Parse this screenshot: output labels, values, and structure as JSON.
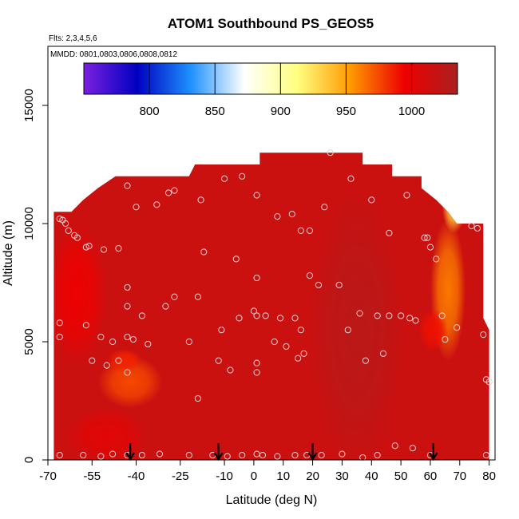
{
  "chart_data": {
    "type": "heatmap",
    "title": "ATOM1 Southbound PS_GEOS5",
    "subtitle_flights": "Flts: 2,3,4,5,6",
    "subtitle_dates": "MMDD: 0801,0803,0806,0808,0812",
    "xlabel": "Latitude (deg N)",
    "ylabel": "Altitude (m)",
    "xlim": [
      -70,
      82
    ],
    "ylim": [
      0,
      17500
    ],
    "x_ticks": [
      -70,
      -55,
      -40,
      -25,
      -10,
      0,
      10,
      20,
      30,
      40,
      50,
      60,
      70,
      80
    ],
    "x_tick_labels": [
      "-70",
      "-55",
      "-40",
      "-25",
      "-10",
      "0",
      "10",
      "20",
      "30",
      "40",
      "50",
      "60",
      "70",
      "80"
    ],
    "y_ticks": [
      0,
      5000,
      10000,
      15000
    ],
    "y_tick_labels": [
      "0",
      "5000",
      "10000",
      "15000"
    ],
    "colorbar": {
      "range": [
        750,
        1035
      ],
      "ticks": [
        800,
        850,
        900,
        950,
        1000
      ],
      "tick_labels": [
        "800",
        "850",
        "900",
        "950",
        "1000"
      ],
      "placement": "top-inside",
      "colors": [
        "#7a1fe0",
        "#0000c0",
        "#1e90ff",
        "#ffffff",
        "#ffff80",
        "#ff9900",
        "#ee0000",
        "#aa2020"
      ]
    },
    "profile_top": [
      {
        "lat": -68,
        "alt": 10500
      },
      {
        "lat": -62,
        "alt": 10500
      },
      {
        "lat": -58,
        "alt": 11000
      },
      {
        "lat": -53,
        "alt": 11500
      },
      {
        "lat": -47,
        "alt": 12000
      },
      {
        "lat": -22,
        "alt": 12000
      },
      {
        "lat": -20,
        "alt": 12500
      },
      {
        "lat": 2,
        "alt": 12500
      },
      {
        "lat": 2,
        "alt": 13000
      },
      {
        "lat": 37,
        "alt": 13000
      },
      {
        "lat": 37,
        "alt": 12500
      },
      {
        "lat": 47,
        "alt": 12500
      },
      {
        "lat": 47,
        "alt": 12000
      },
      {
        "lat": 57,
        "alt": 12000
      },
      {
        "lat": 57,
        "alt": 11500
      },
      {
        "lat": 62,
        "alt": 11000
      },
      {
        "lat": 66,
        "alt": 10500
      },
      {
        "lat": 69,
        "alt": 10000
      },
      {
        "lat": 78,
        "alt": 10000
      },
      {
        "lat": 78,
        "alt": 6000
      },
      {
        "lat": 80,
        "alt": 5500
      },
      {
        "lat": 80,
        "alt": 0
      },
      {
        "lat": -68,
        "alt": 0
      }
    ],
    "field_blobs": [
      {
        "lat": -42,
        "alt": 3300,
        "rlat": 11,
        "ralt": 1100,
        "value": 975
      },
      {
        "lat": -44,
        "alt": 4200,
        "rlat": 6,
        "ralt": 500,
        "value": 985
      },
      {
        "lat": 66,
        "alt": 7200,
        "rlat": 6,
        "ralt": 3000,
        "value": 962
      },
      {
        "lat": 68,
        "alt": 10700,
        "rlat": 4,
        "ralt": 1100,
        "value": 935
      },
      {
        "lat": 61,
        "alt": 5500,
        "rlat": 5,
        "ralt": 900,
        "value": 990
      },
      {
        "lat": 35,
        "alt": 5500,
        "rlat": 16,
        "ralt": 6000,
        "value": 1025
      },
      {
        "lat": -60,
        "alt": 7000,
        "rlat": 10,
        "ralt": 3000,
        "value": 995
      },
      {
        "lat": -50,
        "alt": 1000,
        "rlat": 14,
        "ralt": 1200,
        "value": 1002
      }
    ],
    "background_value": 1015,
    "obs_points": [
      {
        "lat": -66,
        "alt": 10200
      },
      {
        "lat": -65,
        "alt": 10150
      },
      {
        "lat": -64,
        "alt": 10000
      },
      {
        "lat": -63,
        "alt": 9700
      },
      {
        "lat": -61,
        "alt": 9500
      },
      {
        "lat": -60,
        "alt": 9400
      },
      {
        "lat": -57,
        "alt": 9000
      },
      {
        "lat": -56,
        "alt": 9050
      },
      {
        "lat": -51,
        "alt": 8900
      },
      {
        "lat": -46,
        "alt": 8950
      },
      {
        "lat": -43,
        "alt": 11600
      },
      {
        "lat": -40,
        "alt": 10700
      },
      {
        "lat": -33,
        "alt": 10800
      },
      {
        "lat": -29,
        "alt": 11300
      },
      {
        "lat": -27,
        "alt": 11400
      },
      {
        "lat": -18,
        "alt": 11000
      },
      {
        "lat": -10,
        "alt": 11900
      },
      {
        "lat": -4,
        "alt": 12000
      },
      {
        "lat": 1,
        "alt": 11200
      },
      {
        "lat": -17,
        "alt": 8800
      },
      {
        "lat": -6,
        "alt": 8500
      },
      {
        "lat": -43,
        "alt": 7300
      },
      {
        "lat": -43,
        "alt": 6500
      },
      {
        "lat": -38,
        "alt": 6100
      },
      {
        "lat": -30,
        "alt": 6500
      },
      {
        "lat": -27,
        "alt": 6900
      },
      {
        "lat": -19,
        "alt": 6900
      },
      {
        "lat": -66,
        "alt": 5800
      },
      {
        "lat": -66,
        "alt": 5200
      },
      {
        "lat": -57,
        "alt": 5700
      },
      {
        "lat": -52,
        "alt": 5200
      },
      {
        "lat": -48,
        "alt": 5000
      },
      {
        "lat": -43,
        "alt": 5200
      },
      {
        "lat": -41,
        "alt": 5100
      },
      {
        "lat": -55,
        "alt": 4200
      },
      {
        "lat": -50,
        "alt": 4000
      },
      {
        "lat": -46,
        "alt": 4200
      },
      {
        "lat": -43,
        "alt": 3700
      },
      {
        "lat": -36,
        "alt": 4900
      },
      {
        "lat": -19,
        "alt": 2600
      },
      {
        "lat": -22,
        "alt": 5000
      },
      {
        "lat": -12,
        "alt": 4200
      },
      {
        "lat": -11,
        "alt": 5500
      },
      {
        "lat": -8,
        "alt": 3800
      },
      {
        "lat": -5,
        "alt": 6000
      },
      {
        "lat": 0,
        "alt": 6300
      },
      {
        "lat": 1,
        "alt": 6100
      },
      {
        "lat": 1,
        "alt": 7700
      },
      {
        "lat": 1,
        "alt": 4100
      },
      {
        "lat": 1,
        "alt": 3700
      },
      {
        "lat": 4,
        "alt": 6100
      },
      {
        "lat": 7,
        "alt": 5000
      },
      {
        "lat": 9,
        "alt": 6000
      },
      {
        "lat": 11,
        "alt": 4800
      },
      {
        "lat": 14,
        "alt": 6000
      },
      {
        "lat": 15,
        "alt": 4300
      },
      {
        "lat": 17,
        "alt": 4500
      },
      {
        "lat": 16,
        "alt": 5500
      },
      {
        "lat": 8,
        "alt": 10300
      },
      {
        "lat": 13,
        "alt": 10400
      },
      {
        "lat": 16,
        "alt": 9700
      },
      {
        "lat": 19,
        "alt": 9700
      },
      {
        "lat": 19,
        "alt": 7800
      },
      {
        "lat": 22,
        "alt": 7400
      },
      {
        "lat": 24,
        "alt": 10700
      },
      {
        "lat": 26,
        "alt": 13000
      },
      {
        "lat": 29,
        "alt": 7400
      },
      {
        "lat": 32,
        "alt": 5500
      },
      {
        "lat": 33,
        "alt": 11900
      },
      {
        "lat": 36,
        "alt": 6200
      },
      {
        "lat": 38,
        "alt": 4200
      },
      {
        "lat": 40,
        "alt": 11000
      },
      {
        "lat": 42,
        "alt": 6100
      },
      {
        "lat": 44,
        "alt": 4500
      },
      {
        "lat": 46,
        "alt": 6100
      },
      {
        "lat": 46,
        "alt": 9600
      },
      {
        "lat": 50,
        "alt": 6100
      },
      {
        "lat": 52,
        "alt": 11200
      },
      {
        "lat": 53,
        "alt": 6000
      },
      {
        "lat": 55,
        "alt": 5900
      },
      {
        "lat": 58,
        "alt": 9400
      },
      {
        "lat": 59,
        "alt": 9400
      },
      {
        "lat": 60,
        "alt": 9000
      },
      {
        "lat": 62,
        "alt": 8500
      },
      {
        "lat": 64,
        "alt": 6100
      },
      {
        "lat": 65,
        "alt": 5100
      },
      {
        "lat": 69,
        "alt": 5600
      },
      {
        "lat": 74,
        "alt": 9900
      },
      {
        "lat": 76,
        "alt": 9800
      },
      {
        "lat": 78,
        "alt": 5300
      },
      {
        "lat": 79,
        "alt": 3400
      },
      {
        "lat": 80,
        "alt": 3300
      },
      {
        "lat": -66,
        "alt": 200
      },
      {
        "lat": -58,
        "alt": 200
      },
      {
        "lat": -52,
        "alt": 150
      },
      {
        "lat": -48,
        "alt": 250
      },
      {
        "lat": -43,
        "alt": 200
      },
      {
        "lat": -38,
        "alt": 200
      },
      {
        "lat": -32,
        "alt": 250
      },
      {
        "lat": -22,
        "alt": 200
      },
      {
        "lat": -14,
        "alt": 200
      },
      {
        "lat": -9,
        "alt": 150
      },
      {
        "lat": -4,
        "alt": 200
      },
      {
        "lat": 1,
        "alt": 250
      },
      {
        "lat": 3,
        "alt": 200
      },
      {
        "lat": 8,
        "alt": 150
      },
      {
        "lat": 14,
        "alt": 200
      },
      {
        "lat": 18,
        "alt": 200
      },
      {
        "lat": 23,
        "alt": 200
      },
      {
        "lat": 30,
        "alt": 250
      },
      {
        "lat": 37,
        "alt": 100
      },
      {
        "lat": 42,
        "alt": 200
      },
      {
        "lat": 48,
        "alt": 600
      },
      {
        "lat": 54,
        "alt": 500
      },
      {
        "lat": 60,
        "alt": 200
      },
      {
        "lat": 79,
        "alt": 200
      }
    ],
    "arrows": [
      -42,
      -12,
      20,
      61
    ]
  }
}
